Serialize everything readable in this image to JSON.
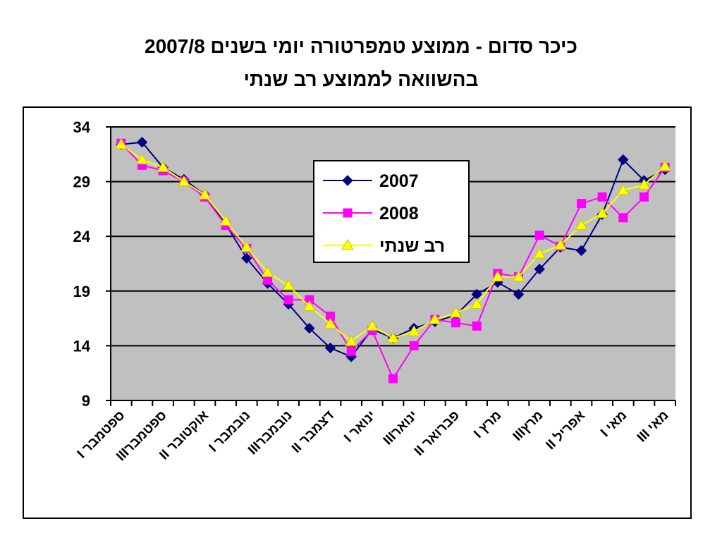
{
  "chart_data": {
    "type": "line",
    "title": "כיכר סדום - ממוצע טמפרטורה יומי בשנים 2007/8",
    "subtitle": "בהשוואה לממוצע רב שנתי",
    "categories": [
      "ספטמבר I",
      null,
      "ספטמברIII",
      null,
      "אוקטובר II",
      null,
      "נובמבר I",
      null,
      "נובמברIII",
      null,
      "דצמבר II",
      null,
      "ינואר I",
      null,
      "ינוארIII",
      null,
      "פברואר II",
      null,
      "מרץ I",
      null,
      "מרץIII",
      null,
      "אפריל II",
      null,
      "מאי I",
      null,
      "מאי III"
    ],
    "series": [
      {
        "name": "2007",
        "color": "#000080",
        "marker": "diamond",
        "values": [
          32.4,
          32.6,
          30.3,
          29.2,
          27.8,
          25.1,
          22.0,
          19.7,
          17.8,
          15.6,
          13.8,
          13.0,
          15.5,
          14.7,
          15.6,
          16.2,
          16.8,
          18.7,
          19.8,
          18.7,
          21.0,
          23.0,
          22.7,
          26.0,
          31.0,
          29.1,
          30.1
        ]
      },
      {
        "name": "2008",
        "color": "#ff00ff",
        "marker": "square",
        "values": [
          32.5,
          30.5,
          30.0,
          29.0,
          27.6,
          25.0,
          22.9,
          20.0,
          18.2,
          18.2,
          16.7,
          13.5,
          15.4,
          11.0,
          14.0,
          16.4,
          16.1,
          15.8,
          20.6,
          20.3,
          24.1,
          23.1,
          27.0,
          27.6,
          25.7,
          27.6,
          30.3
        ]
      },
      {
        "name": "רב שנתי",
        "color": "#ffff00",
        "marker": "triangle",
        "values": [
          32.4,
          31.0,
          30.3,
          29.0,
          27.8,
          25.4,
          23.0,
          20.7,
          19.5,
          17.6,
          16.0,
          14.4,
          15.8,
          14.7,
          15.3,
          16.4,
          17.0,
          17.8,
          20.3,
          20.3,
          22.4,
          23.2,
          25.0,
          26.1,
          28.2,
          28.7,
          30.4
        ]
      }
    ],
    "ylim": [
      9,
      34
    ],
    "yticks": [
      9,
      14,
      19,
      24,
      29,
      34
    ],
    "grid": true
  }
}
